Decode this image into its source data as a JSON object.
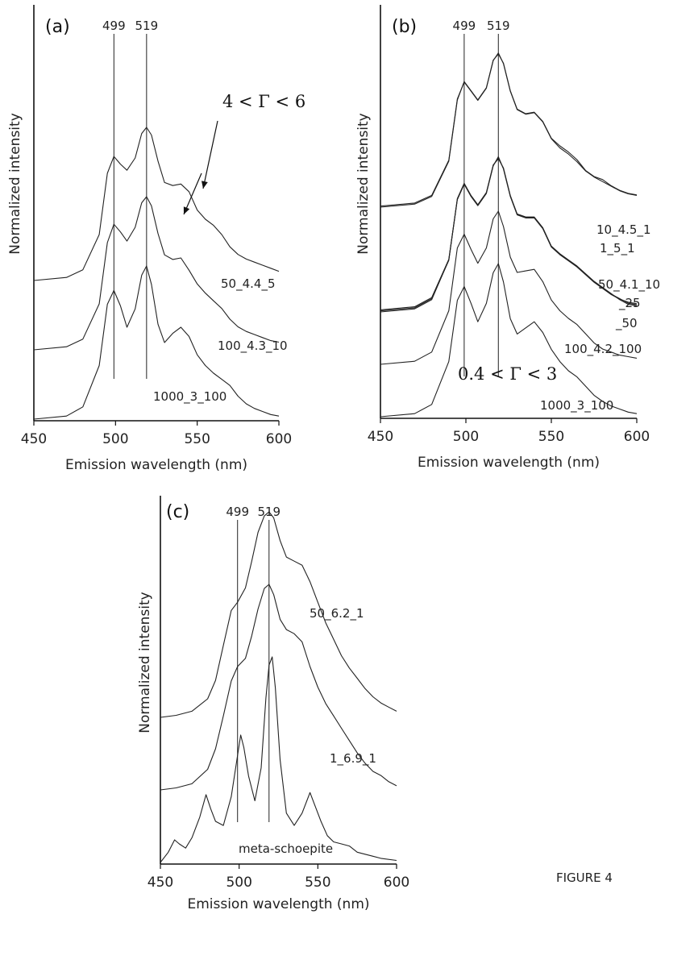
{
  "figure_label": "FIGURE 4",
  "colors": {
    "line": "#222222",
    "axis": "#111111"
  },
  "chart_data": [
    {
      "type": "line",
      "panel": "(a)",
      "xlabel": "Emission wavelength (nm)",
      "ylabel": "Normalized intensity",
      "xlim": [
        450,
        600
      ],
      "xticks": [
        "450",
        "500",
        "550",
        "600"
      ],
      "reference_lines": [
        499,
        519
      ],
      "reference_labels": [
        "499",
        "519"
      ],
      "annotation": "4 < Γ < 6",
      "grid": false,
      "series": [
        {
          "name": "50_4.4_5",
          "offset": 2,
          "x": [
            450,
            470,
            480,
            490,
            495,
            499,
            503,
            507,
            512,
            516,
            519,
            522,
            526,
            530,
            535,
            540,
            545,
            550,
            555,
            560,
            565,
            570,
            575,
            580,
            585,
            590,
            595,
            600
          ],
          "y": [
            0,
            0.02,
            0.07,
            0.3,
            0.7,
            0.81,
            0.76,
            0.72,
            0.8,
            0.96,
            1.0,
            0.95,
            0.78,
            0.64,
            0.62,
            0.63,
            0.58,
            0.46,
            0.4,
            0.36,
            0.3,
            0.22,
            0.17,
            0.14,
            0.12,
            0.1,
            0.08,
            0.06
          ]
        },
        {
          "name": "100_4.3_10",
          "offset": 1,
          "x": [
            450,
            470,
            480,
            490,
            495,
            499,
            503,
            507,
            512,
            516,
            519,
            522,
            526,
            530,
            535,
            540,
            545,
            550,
            555,
            560,
            565,
            570,
            575,
            580,
            585,
            590,
            595,
            600
          ],
          "y": [
            0,
            0.02,
            0.07,
            0.3,
            0.7,
            0.82,
            0.77,
            0.71,
            0.8,
            0.96,
            1.0,
            0.94,
            0.76,
            0.62,
            0.59,
            0.6,
            0.52,
            0.43,
            0.37,
            0.32,
            0.27,
            0.2,
            0.15,
            0.12,
            0.1,
            0.08,
            0.06,
            0.05
          ]
        },
        {
          "name": "1000_3_100",
          "offset": 0,
          "x": [
            450,
            470,
            480,
            490,
            495,
            499,
            503,
            507,
            512,
            516,
            519,
            522,
            526,
            530,
            535,
            540,
            545,
            550,
            555,
            560,
            565,
            570,
            575,
            580,
            585,
            590,
            595,
            600
          ],
          "y": [
            0,
            0.02,
            0.08,
            0.35,
            0.75,
            0.84,
            0.74,
            0.6,
            0.72,
            0.94,
            1.0,
            0.88,
            0.62,
            0.5,
            0.56,
            0.6,
            0.54,
            0.42,
            0.35,
            0.3,
            0.26,
            0.22,
            0.15,
            0.1,
            0.07,
            0.05,
            0.03,
            0.02
          ]
        }
      ]
    },
    {
      "type": "line",
      "panel": "(b)",
      "xlabel": "Emission wavelength (nm)",
      "ylabel": "Normalized intensity",
      "xlim": [
        450,
        600
      ],
      "xticks": [
        "450",
        "500",
        "550",
        "600"
      ],
      "reference_lines": [
        499,
        519
      ],
      "reference_labels": [
        "499",
        "519"
      ],
      "annotation": "0.4 < Γ < 3",
      "grid": false,
      "series": [
        {
          "name": "10_4.5_1",
          "offset": 4,
          "x": [
            450,
            470,
            480,
            490,
            495,
            499,
            503,
            507,
            512,
            516,
            519,
            522,
            526,
            530,
            535,
            540,
            545,
            550,
            555,
            560,
            565,
            570,
            575,
            580,
            585,
            590,
            595,
            600
          ],
          "y": [
            0,
            0.02,
            0.07,
            0.3,
            0.7,
            0.82,
            0.76,
            0.7,
            0.78,
            0.96,
            1.0,
            0.94,
            0.76,
            0.64,
            0.61,
            0.62,
            0.56,
            0.45,
            0.4,
            0.36,
            0.31,
            0.24,
            0.2,
            0.18,
            0.14,
            0.11,
            0.09,
            0.08
          ]
        },
        {
          "name": "1_5_1",
          "offset": 4.02,
          "x": [
            450,
            470,
            480,
            490,
            495,
            499,
            503,
            507,
            512,
            516,
            519,
            522,
            526,
            530,
            535,
            540,
            545,
            550,
            555,
            560,
            565,
            570,
            575,
            580,
            585,
            590,
            595,
            600
          ],
          "y": [
            0,
            0.02,
            0.07,
            0.3,
            0.7,
            0.81,
            0.75,
            0.69,
            0.77,
            0.95,
            1.0,
            0.93,
            0.75,
            0.63,
            0.6,
            0.61,
            0.55,
            0.44,
            0.38,
            0.34,
            0.29,
            0.23,
            0.19,
            0.16,
            0.13,
            0.1,
            0.08,
            0.07
          ]
        },
        {
          "name": "50_4.1_10",
          "offset": 2,
          "x": [
            450,
            470,
            480,
            490,
            495,
            499,
            503,
            507,
            512,
            516,
            519,
            522,
            526,
            530,
            535,
            540,
            545,
            550,
            555,
            560,
            565,
            570,
            575,
            580,
            585,
            590,
            595,
            600
          ],
          "y": [
            0,
            0.02,
            0.08,
            0.34,
            0.74,
            0.84,
            0.76,
            0.7,
            0.78,
            0.96,
            1.0,
            0.94,
            0.76,
            0.64,
            0.62,
            0.62,
            0.55,
            0.43,
            0.38,
            0.34,
            0.3,
            0.25,
            0.2,
            0.16,
            0.12,
            0.08,
            0.05,
            0.04
          ]
        },
        {
          "name": "_25",
          "offset": 2.02,
          "x": [
            450,
            470,
            480,
            490,
            495,
            499,
            503,
            507,
            512,
            516,
            519,
            522,
            526,
            530,
            535,
            540,
            545,
            550,
            555,
            560,
            565,
            570,
            575,
            580,
            585,
            590,
            595,
            600
          ],
          "y": [
            0,
            0.02,
            0.08,
            0.33,
            0.73,
            0.83,
            0.75,
            0.69,
            0.77,
            0.95,
            1.0,
            0.93,
            0.75,
            0.63,
            0.61,
            0.61,
            0.54,
            0.42,
            0.37,
            0.33,
            0.29,
            0.24,
            0.19,
            0.15,
            0.11,
            0.08,
            0.05,
            0.04
          ]
        },
        {
          "name": "_50",
          "offset": 2.04,
          "x": [
            450,
            470,
            480,
            490,
            495,
            499,
            503,
            507,
            512,
            516,
            519,
            522,
            526,
            530,
            535,
            540,
            545,
            550,
            555,
            560,
            565,
            570,
            575,
            580,
            585,
            590,
            595,
            600
          ],
          "y": [
            0,
            0.02,
            0.08,
            0.33,
            0.72,
            0.82,
            0.74,
            0.68,
            0.76,
            0.94,
            1.0,
            0.92,
            0.74,
            0.62,
            0.6,
            0.6,
            0.53,
            0.41,
            0.36,
            0.32,
            0.28,
            0.23,
            0.18,
            0.14,
            0.1,
            0.07,
            0.05,
            0.04
          ]
        },
        {
          "name": "100_4.2_100",
          "offset": 1,
          "x": [
            450,
            470,
            480,
            490,
            495,
            499,
            503,
            507,
            512,
            516,
            519,
            522,
            526,
            530,
            535,
            540,
            545,
            550,
            555,
            560,
            565,
            570,
            575,
            580,
            585,
            590,
            595,
            600
          ],
          "y": [
            0,
            0.02,
            0.08,
            0.35,
            0.76,
            0.85,
            0.75,
            0.66,
            0.76,
            0.95,
            1.0,
            0.9,
            0.7,
            0.6,
            0.61,
            0.62,
            0.54,
            0.42,
            0.35,
            0.3,
            0.26,
            0.2,
            0.14,
            0.1,
            0.08,
            0.06,
            0.05,
            0.04
          ]
        },
        {
          "name": "1000_3_100",
          "offset": 0,
          "x": [
            450,
            470,
            480,
            490,
            495,
            499,
            503,
            507,
            512,
            516,
            519,
            522,
            526,
            530,
            535,
            540,
            545,
            550,
            555,
            560,
            565,
            570,
            575,
            580,
            585,
            590,
            595,
            600
          ],
          "y": [
            0,
            0.02,
            0.08,
            0.36,
            0.76,
            0.85,
            0.74,
            0.62,
            0.74,
            0.94,
            1.0,
            0.88,
            0.64,
            0.54,
            0.58,
            0.62,
            0.55,
            0.44,
            0.36,
            0.3,
            0.26,
            0.2,
            0.14,
            0.1,
            0.07,
            0.05,
            0.03,
            0.02
          ]
        }
      ]
    },
    {
      "type": "line",
      "panel": "(c)",
      "xlabel": "Emission wavelength (nm)",
      "ylabel": "Normalized intensity",
      "xlim": [
        450,
        600
      ],
      "xticks": [
        "450",
        "500",
        "550",
        "600"
      ],
      "reference_lines": [
        499,
        519
      ],
      "reference_labels": [
        "499",
        "519"
      ],
      "grid": false,
      "series": [
        {
          "name": "50_6.2_1",
          "offset": 2,
          "x": [
            450,
            460,
            470,
            480,
            485,
            490,
            495,
            499,
            504,
            508,
            512,
            516,
            519,
            522,
            526,
            530,
            535,
            540,
            545,
            550,
            555,
            560,
            565,
            570,
            575,
            580,
            585,
            590,
            595,
            600
          ],
          "y": [
            0,
            0.01,
            0.03,
            0.09,
            0.18,
            0.35,
            0.52,
            0.56,
            0.63,
            0.76,
            0.9,
            0.98,
            1.0,
            0.97,
            0.86,
            0.78,
            0.76,
            0.74,
            0.66,
            0.56,
            0.46,
            0.38,
            0.3,
            0.24,
            0.19,
            0.14,
            0.1,
            0.07,
            0.05,
            0.03
          ]
        },
        {
          "name": "1_6.9_1",
          "offset": 1,
          "x": [
            450,
            460,
            470,
            480,
            485,
            490,
            495,
            499,
            504,
            508,
            512,
            516,
            519,
            522,
            526,
            530,
            535,
            540,
            545,
            550,
            555,
            560,
            565,
            570,
            575,
            580,
            585,
            590,
            595,
            600
          ],
          "y": [
            0,
            0.01,
            0.03,
            0.1,
            0.2,
            0.36,
            0.53,
            0.6,
            0.64,
            0.75,
            0.88,
            0.98,
            1.0,
            0.95,
            0.83,
            0.78,
            0.76,
            0.72,
            0.6,
            0.5,
            0.42,
            0.36,
            0.3,
            0.24,
            0.18,
            0.13,
            0.09,
            0.07,
            0.04,
            0.02
          ]
        },
        {
          "name": "meta-schoepite",
          "offset": 0,
          "x": [
            450,
            455,
            459,
            462,
            466,
            470,
            475,
            479,
            482,
            485,
            490,
            495,
            499,
            501,
            503,
            506,
            510,
            514,
            517,
            519,
            521,
            523,
            526,
            530,
            535,
            540,
            545,
            548,
            552,
            556,
            560,
            565,
            570,
            575,
            580,
            585,
            590,
            600
          ],
          "y": [
            0,
            0.05,
            0.11,
            0.09,
            0.07,
            0.12,
            0.22,
            0.33,
            0.26,
            0.2,
            0.18,
            0.32,
            0.52,
            0.62,
            0.56,
            0.42,
            0.3,
            0.46,
            0.8,
            0.96,
            1.0,
            0.85,
            0.5,
            0.24,
            0.18,
            0.24,
            0.34,
            0.28,
            0.2,
            0.13,
            0.1,
            0.09,
            0.08,
            0.05,
            0.04,
            0.03,
            0.02,
            0.01
          ]
        }
      ]
    }
  ]
}
